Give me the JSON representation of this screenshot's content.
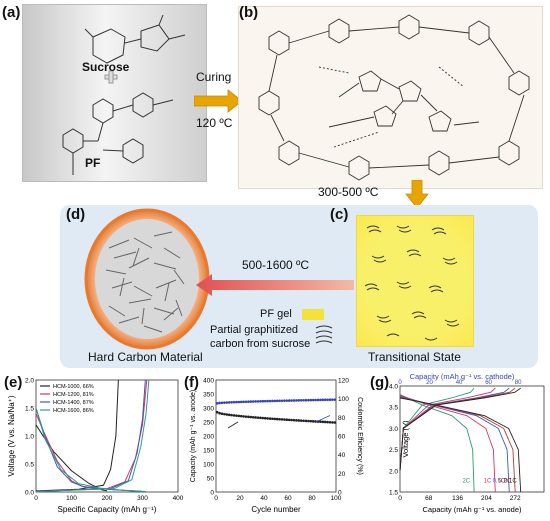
{
  "panels": {
    "a": {
      "label": "(a)",
      "sucrose": "Sucrose",
      "pf": "PF"
    },
    "b": {
      "label": "(b)",
      "arrow_top": "Curing",
      "arrow_bottom": "120 ºC"
    },
    "c": {
      "label": "(c)",
      "arrow_temp": "300-500 ºC",
      "caption": "Transitional  State",
      "legend_pf_gel": "PF gel",
      "legend_carbon_line1": "Partial graphitized",
      "legend_carbon_line2": "carbon from sucrose"
    },
    "d": {
      "label": "(d)",
      "arrow_temp": "500-1600 ºC",
      "caption": "Hard Carbon Material"
    },
    "e": {
      "label": "(e)"
    },
    "f": {
      "label": "(f)"
    },
    "g": {
      "label": "(g)"
    }
  },
  "colors": {
    "arrow_gold": "#e8a400",
    "arrow_red": "#e05050",
    "pf_gel": "#f2e23a",
    "ellipse_ring": "#e87a30",
    "panel_bg": "#dfeaf4"
  },
  "chart_data": [
    {
      "type": "line",
      "ylabel": "Voltage (V vs. Na/Na⁺)",
      "xlabel": "Specific Capacity (mAh g⁻¹)",
      "xlim": [
        0,
        400
      ],
      "ylim": [
        0.0,
        2.0
      ],
      "xticks": [
        "0",
        "100",
        "200",
        "300",
        "400"
      ],
      "yticks": [
        "0.0",
        "0.5",
        "1.0",
        "1.5",
        "2.0"
      ],
      "legend_position": "top-left",
      "series": [
        {
          "name": "HCM-1000, 66%",
          "color": "#222222",
          "discharge": [
            [
              0,
              1.2
            ],
            [
              20,
              1.0
            ],
            [
              50,
              0.72
            ],
            [
              100,
              0.38
            ],
            [
              150,
              0.15
            ],
            [
              185,
              0.04
            ],
            [
              200,
              0.02
            ]
          ],
          "charge": [
            [
              0,
              0.02
            ],
            [
              120,
              0.05
            ],
            [
              190,
              0.12
            ],
            [
              210,
              0.4
            ],
            [
              225,
              1.0
            ],
            [
              232,
              2.0
            ]
          ]
        },
        {
          "name": "HCM-1200, 81%",
          "color": "#d6336c",
          "discharge": [
            [
              0,
              1.4
            ],
            [
              20,
              1.1
            ],
            [
              60,
              0.55
            ],
            [
              100,
              0.2
            ],
            [
              130,
              0.1
            ],
            [
              200,
              0.05
            ],
            [
              280,
              0.02
            ],
            [
              300,
              0.01
            ]
          ],
          "charge": [
            [
              0,
              0.01
            ],
            [
              200,
              0.06
            ],
            [
              250,
              0.18
            ],
            [
              280,
              0.6
            ],
            [
              300,
              1.2
            ],
            [
              312,
              2.0
            ]
          ]
        },
        {
          "name": "HCM-1400, 87%",
          "color": "#3b5bbf",
          "discharge": [
            [
              0,
              1.5
            ],
            [
              25,
              1.0
            ],
            [
              60,
              0.45
            ],
            [
              100,
              0.18
            ],
            [
              140,
              0.08
            ],
            [
              220,
              0.04
            ],
            [
              300,
              0.01
            ]
          ],
          "charge": [
            [
              0,
              0.01
            ],
            [
              210,
              0.06
            ],
            [
              260,
              0.2
            ],
            [
              285,
              0.7
            ],
            [
              300,
              1.3
            ],
            [
              308,
              2.0
            ]
          ]
        },
        {
          "name": "HCM-1600, 86%",
          "color": "#2a9d8f",
          "discharge": [
            [
              0,
              1.5
            ],
            [
              25,
              0.95
            ],
            [
              70,
              0.4
            ],
            [
              120,
              0.15
            ],
            [
              180,
              0.07
            ],
            [
              250,
              0.03
            ],
            [
              310,
              0.01
            ]
          ],
          "charge": [
            [
              0,
              0.01
            ],
            [
              220,
              0.06
            ],
            [
              270,
              0.22
            ],
            [
              295,
              0.8
            ],
            [
              310,
              1.4
            ],
            [
              318,
              2.0
            ]
          ]
        }
      ]
    },
    {
      "type": "scatter",
      "ylabel": "Capacity (mAh g⁻¹ vs. anode)",
      "y2label": "Coulombic Efficiency (%)",
      "xlabel": "Cycle number",
      "xlim": [
        0,
        100
      ],
      "ylim": [
        0,
        400
      ],
      "y2lim": [
        0,
        120
      ],
      "xticks": [
        "0",
        "20",
        "40",
        "60",
        "80",
        "100"
      ],
      "yticks": [
        "0",
        "50",
        "100",
        "150",
        "200",
        "250",
        "300",
        "350",
        "400"
      ],
      "y2ticks": [
        "0",
        "20",
        "40",
        "60",
        "80",
        "100",
        "120"
      ],
      "series": [
        {
          "name": "Capacity",
          "color": "#222222",
          "start": 285,
          "end": 248,
          "axis": "left"
        },
        {
          "name": "Coulombic Efficiency",
          "color": "#3344bb",
          "start": 95,
          "end": 99,
          "axis": "right"
        }
      ]
    },
    {
      "type": "line",
      "title": "Capacity (mAh g⁻¹ vs. cathode)",
      "ylabel": "Voltage (V)",
      "xlabel": "Capacity (mAh g⁻¹ vs. anode)",
      "xlim": [
        0,
        340
      ],
      "ylim": [
        1.5,
        4.0
      ],
      "xticks": [
        "0",
        "68",
        "136",
        "204",
        "272"
      ],
      "top_ticks": [
        "0",
        "20",
        "40",
        "60",
        "80"
      ],
      "yticks": [
        "1.5",
        "2.0",
        "2.5",
        "3.0",
        "3.5",
        "4.0"
      ],
      "series": [
        {
          "name": "2C",
          "color": "#2a9d6a",
          "end_x": 175
        },
        {
          "name": "1C",
          "color": "#d6336c",
          "end_x": 225
        },
        {
          "name": "0.5C",
          "color": "#3b5bbf",
          "end_x": 258
        },
        {
          "name": "0.2C",
          "color": "#c0392b",
          "end_x": 272
        },
        {
          "name": "0.1C",
          "color": "#222222",
          "end_x": 285
        }
      ]
    }
  ]
}
